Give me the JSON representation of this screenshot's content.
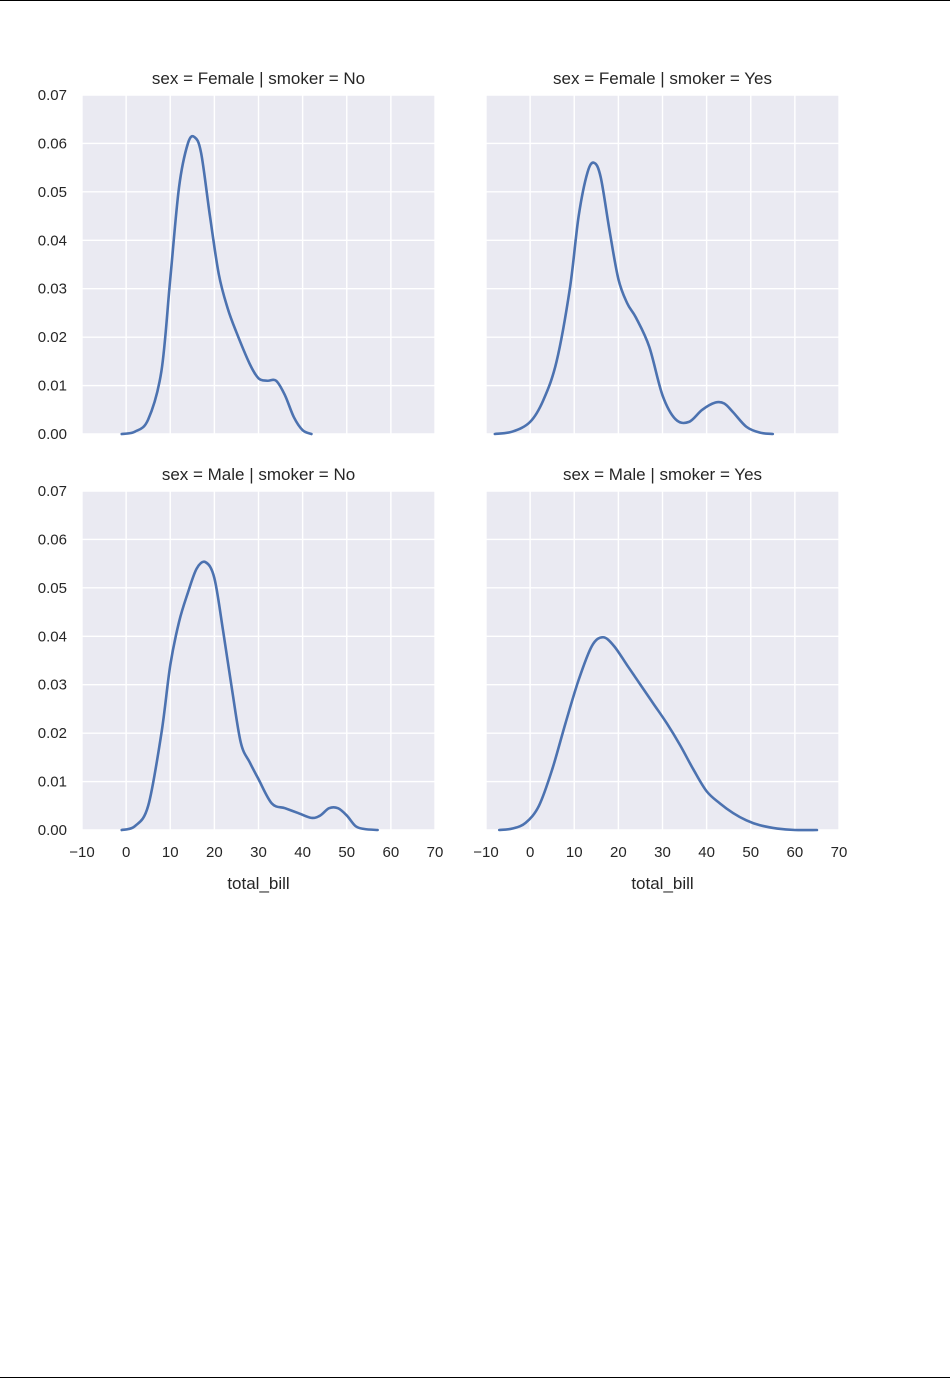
{
  "chart_data": [
    {
      "type": "line",
      "title": "sex = Female | smoker = No",
      "xlabel": "",
      "ylabel": "",
      "xlim": [
        -10,
        70
      ],
      "ylim": [
        0,
        0.07
      ],
      "x_ticks": [
        "−10",
        "0",
        "10",
        "20",
        "30",
        "40",
        "50",
        "60",
        "70"
      ],
      "y_ticks": [
        "0.00",
        "0.01",
        "0.02",
        "0.03",
        "0.04",
        "0.05",
        "0.06",
        "0.07"
      ],
      "grid": true,
      "series": [
        {
          "color": "#4c72b0",
          "x": [
            -1,
            2,
            5,
            8,
            10,
            12,
            14,
            15.5,
            17,
            19,
            21,
            23,
            25,
            28,
            30,
            32,
            34,
            36,
            38,
            40,
            42
          ],
          "y": [
            0.0,
            0.0005,
            0.003,
            0.013,
            0.032,
            0.051,
            0.06,
            0.0613,
            0.058,
            0.045,
            0.033,
            0.026,
            0.021,
            0.0145,
            0.0115,
            0.011,
            0.011,
            0.008,
            0.0035,
            0.0008,
            0.0
          ]
        }
      ]
    },
    {
      "type": "line",
      "title": "sex = Female | smoker = Yes",
      "xlabel": "",
      "ylabel": "",
      "xlim": [
        -10,
        70
      ],
      "ylim": [
        0,
        0.07
      ],
      "x_ticks": [
        "−10",
        "0",
        "10",
        "20",
        "30",
        "40",
        "50",
        "60",
        "70"
      ],
      "y_ticks": [
        "0.00",
        "0.01",
        "0.02",
        "0.03",
        "0.04",
        "0.05",
        "0.06",
        "0.07"
      ],
      "grid": true,
      "series": [
        {
          "color": "#4c72b0",
          "x": [
            -8,
            -4,
            0,
            3,
            6,
            9,
            11,
            13,
            14.5,
            16,
            18,
            20,
            22,
            24,
            27,
            30,
            33,
            36,
            39,
            42,
            44,
            46,
            49,
            52,
            55
          ],
          "y": [
            0.0,
            0.0005,
            0.0025,
            0.007,
            0.015,
            0.03,
            0.045,
            0.054,
            0.056,
            0.053,
            0.042,
            0.032,
            0.027,
            0.024,
            0.018,
            0.008,
            0.003,
            0.0025,
            0.005,
            0.0065,
            0.0063,
            0.0045,
            0.0015,
            0.0003,
            0.0
          ]
        }
      ]
    },
    {
      "type": "line",
      "title": "sex = Male | smoker = No",
      "xlabel": "total_bill",
      "ylabel": "",
      "xlim": [
        -10,
        70
      ],
      "ylim": [
        0,
        0.07
      ],
      "x_ticks": [
        "−10",
        "0",
        "10",
        "20",
        "30",
        "40",
        "50",
        "60",
        "70"
      ],
      "y_ticks": [
        "0.00",
        "0.01",
        "0.02",
        "0.03",
        "0.04",
        "0.05",
        "0.06",
        "0.07"
      ],
      "grid": true,
      "series": [
        {
          "color": "#4c72b0",
          "x": [
            -1,
            2,
            5,
            8,
            10,
            12,
            14,
            16,
            18,
            20,
            22,
            24,
            26,
            28,
            30,
            33,
            36,
            39,
            42,
            44,
            46,
            48,
            50,
            52,
            54,
            57
          ],
          "y": [
            0.0,
            0.0008,
            0.005,
            0.02,
            0.034,
            0.043,
            0.049,
            0.054,
            0.0553,
            0.052,
            0.041,
            0.029,
            0.018,
            0.014,
            0.0105,
            0.0055,
            0.0045,
            0.0035,
            0.0025,
            0.003,
            0.0045,
            0.0045,
            0.003,
            0.0008,
            0.0002,
            0.0
          ]
        }
      ]
    },
    {
      "type": "line",
      "title": "sex = Male | smoker = Yes",
      "xlabel": "total_bill",
      "ylabel": "",
      "xlim": [
        -10,
        70
      ],
      "ylim": [
        0,
        0.07
      ],
      "x_ticks": [
        "−10",
        "0",
        "10",
        "20",
        "30",
        "40",
        "50",
        "60",
        "70"
      ],
      "y_ticks": [
        "0.00",
        "0.01",
        "0.02",
        "0.03",
        "0.04",
        "0.05",
        "0.06",
        "0.07"
      ],
      "grid": true,
      "series": [
        {
          "color": "#4c72b0",
          "x": [
            -7,
            -4,
            -1,
            2,
            5,
            8,
            11,
            14,
            16.5,
            19,
            22,
            25,
            28,
            31,
            34,
            37,
            40,
            43,
            46,
            49,
            52,
            56,
            60,
            65
          ],
          "y": [
            0.0,
            0.0003,
            0.0015,
            0.005,
            0.0125,
            0.022,
            0.031,
            0.038,
            0.0398,
            0.038,
            0.034,
            0.03,
            0.026,
            0.022,
            0.0175,
            0.0125,
            0.008,
            0.0055,
            0.0035,
            0.002,
            0.001,
            0.0003,
            0.0,
            0.0
          ]
        }
      ]
    }
  ]
}
